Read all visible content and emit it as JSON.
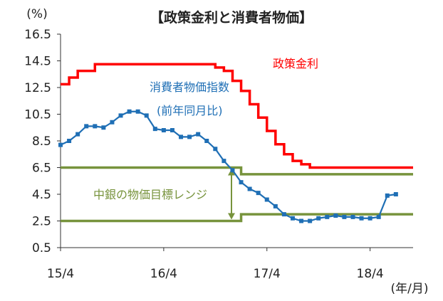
{
  "chart_data": {
    "type": "line",
    "title": "【政策金利と消費者物価】",
    "ylabel": "(%)",
    "xlabel": "(年/月)",
    "ylim": [
      0.5,
      16.5
    ],
    "y_ticks": [
      "16.5",
      "14.5",
      "12.5",
      "10.5",
      "8.5",
      "6.5",
      "4.5",
      "2.5",
      "0.5"
    ],
    "x_ticks": [
      "15/4",
      "16/4",
      "17/4",
      "18/4"
    ],
    "x_range": [
      0,
      41
    ],
    "grid": false,
    "series": [
      {
        "name": "政策金利",
        "color": "#ff0000",
        "style": "step",
        "x": [
          0,
          1,
          2,
          4,
          11,
          18,
          19,
          20,
          21,
          22,
          23,
          24,
          25,
          26,
          27,
          28,
          29,
          30,
          31,
          32,
          33,
          35,
          36,
          41
        ],
        "values": [
          12.75,
          13.25,
          13.75,
          14.25,
          14.25,
          14.0,
          13.75,
          13.0,
          12.25,
          11.25,
          10.25,
          9.25,
          8.25,
          7.5,
          7.0,
          6.75,
          6.5,
          6.5,
          6.5,
          6.5,
          6.5,
          6.5,
          6.5,
          6.5
        ]
      },
      {
        "name": "消費者物価指数",
        "sublabel": "(前年同月比)",
        "color": "#1f6fb5",
        "style": "line-marker",
        "x": [
          0,
          1,
          2,
          3,
          4,
          5,
          6,
          7,
          8,
          9,
          10,
          11,
          12,
          13,
          14,
          15,
          16,
          17,
          18,
          19,
          20,
          21,
          22,
          23,
          24,
          25,
          26,
          27,
          28,
          29,
          30,
          31,
          32,
          33,
          34,
          35,
          36,
          37,
          38,
          39
        ],
        "values": [
          8.2,
          8.5,
          9.0,
          9.6,
          9.6,
          9.5,
          9.9,
          10.4,
          10.7,
          10.7,
          10.4,
          9.4,
          9.3,
          9.3,
          8.8,
          8.8,
          9.0,
          8.5,
          7.9,
          7.0,
          6.3,
          5.4,
          4.9,
          4.6,
          4.1,
          3.6,
          3.0,
          2.7,
          2.5,
          2.5,
          2.7,
          2.8,
          2.9,
          2.8,
          2.8,
          2.7,
          2.7,
          2.8,
          4.4,
          4.5
        ]
      },
      {
        "name": "中銀の物価目標レンジ",
        "color": "#77933c",
        "style": "band",
        "x": [
          0,
          21,
          21,
          41
        ],
        "upper": [
          6.5,
          6.5,
          6.0,
          6.0
        ],
        "lower": [
          2.5,
          2.5,
          3.0,
          3.0
        ]
      }
    ]
  }
}
